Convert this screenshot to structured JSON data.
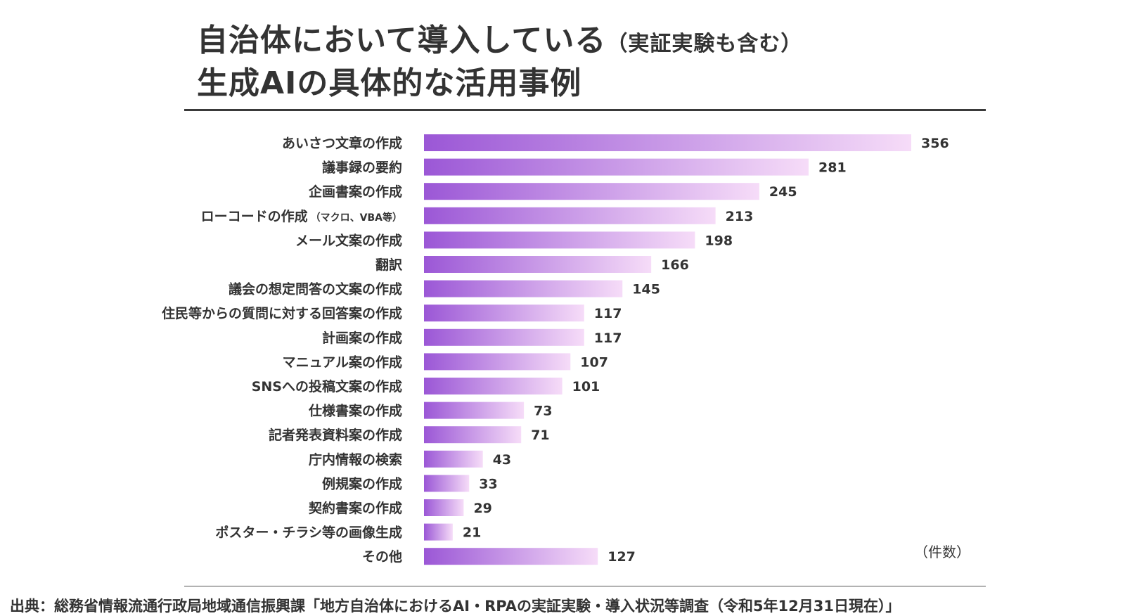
{
  "title": {
    "line1_main": "自治体において導入している",
    "line1_paren": "（実証実験も含む）",
    "line2": "生成AIの具体的な活用事例"
  },
  "unit_label": "（件数）",
  "source": "出典：総務省情報流通行政局地域通信振興課「地方自治体におけるAI・RPAの実証実験・導入状況等調査（令和5年12月31日現在）」",
  "colors": {
    "bar_start": "#9b57d6",
    "bar_end": "#f6dcf8"
  },
  "chart_data": {
    "type": "bar",
    "orientation": "horizontal",
    "title": "自治体において導入している（実証実験も含む）生成AIの具体的な活用事例",
    "xlabel": "（件数）",
    "ylabel": "",
    "xlim": [
      0,
      356
    ],
    "grid": false,
    "categories": [
      {
        "main": "あいさつ文章の作成",
        "note": ""
      },
      {
        "main": "議事録の要約",
        "note": ""
      },
      {
        "main": "企画書案の作成",
        "note": ""
      },
      {
        "main": "ローコードの作成",
        "note": "（マクロ、VBA等）"
      },
      {
        "main": "メール文案の作成",
        "note": ""
      },
      {
        "main": "翻訳",
        "note": ""
      },
      {
        "main": "議会の想定問答の文案の作成",
        "note": ""
      },
      {
        "main": "住民等からの質問に対する回答案の作成",
        "note": ""
      },
      {
        "main": "計画案の作成",
        "note": ""
      },
      {
        "main": "マニュアル案の作成",
        "note": ""
      },
      {
        "main": "SNSへの投稿文案の作成",
        "note": ""
      },
      {
        "main": "仕様書案の作成",
        "note": ""
      },
      {
        "main": "記者発表資料案の作成",
        "note": ""
      },
      {
        "main": "庁内情報の検索",
        "note": ""
      },
      {
        "main": "例規案の作成",
        "note": ""
      },
      {
        "main": "契約書案の作成",
        "note": ""
      },
      {
        "main": "ポスター・チラシ等の画像生成",
        "note": ""
      },
      {
        "main": "その他",
        "note": ""
      }
    ],
    "values": [
      356,
      281,
      245,
      213,
      198,
      166,
      145,
      117,
      117,
      107,
      101,
      73,
      71,
      43,
      33,
      29,
      21,
      127
    ]
  }
}
